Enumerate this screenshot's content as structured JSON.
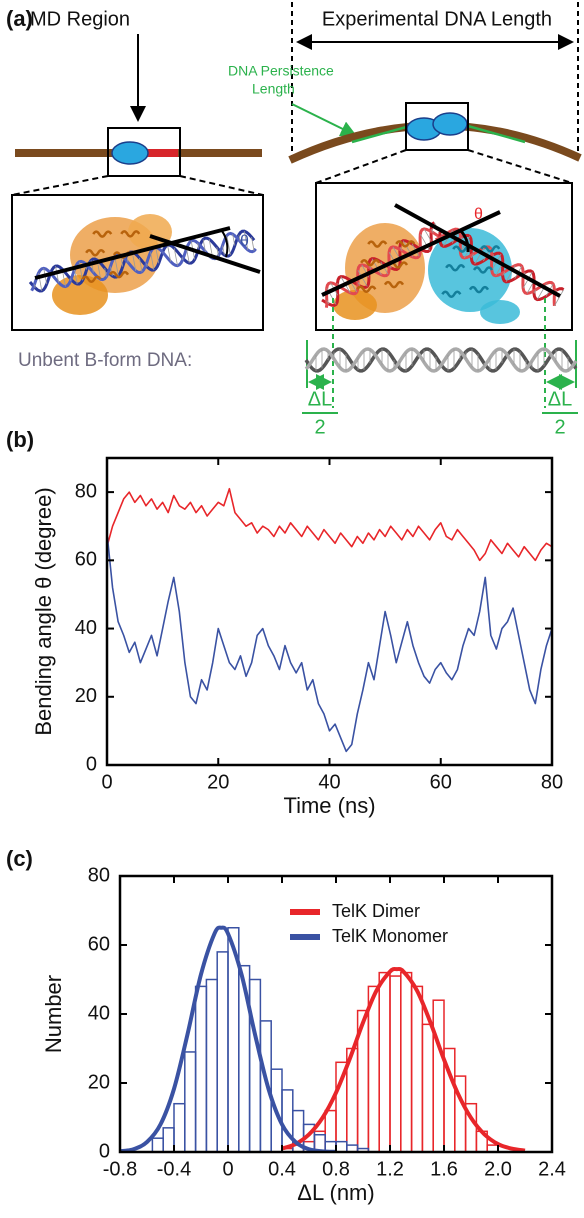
{
  "figure_a": {
    "label": "(a)",
    "md_region": "MD Region",
    "experimental_length": "Experimental DNA Length",
    "persistence_length": [
      "DNA Persistence",
      "Length"
    ],
    "theta_monomer": "θ",
    "theta_dimer": "θ",
    "unbent_dna": "Unbent B-form DNA:",
    "delta_l_left": {
      "numerator": "ΔL",
      "denominator": "2"
    },
    "delta_l_right": {
      "numerator": "ΔL",
      "denominator": "2"
    }
  },
  "chart_data": [
    {
      "type": "line",
      "panel_label": "(b)",
      "x_label": "Time (ns)",
      "y_label": "Bending angle θ (degree)",
      "xlim": [
        0,
        80
      ],
      "xticks": [
        0,
        20,
        40,
        60,
        80
      ],
      "ylim": [
        0,
        90
      ],
      "yticks": [
        0,
        20,
        40,
        60,
        80
      ],
      "x": [
        0,
        1,
        2,
        3,
        4,
        5,
        6,
        7,
        8,
        9,
        10,
        11,
        12,
        13,
        14,
        15,
        16,
        17,
        18,
        19,
        20,
        21,
        22,
        23,
        24,
        25,
        26,
        27,
        28,
        29,
        30,
        31,
        32,
        33,
        34,
        35,
        36,
        37,
        38,
        39,
        40,
        41,
        42,
        43,
        44,
        45,
        46,
        47,
        48,
        49,
        50,
        51,
        52,
        53,
        54,
        55,
        56,
        57,
        58,
        59,
        60,
        61,
        62,
        63,
        64,
        65,
        66,
        67,
        68,
        69,
        70,
        71,
        72,
        73,
        74,
        75,
        76,
        77,
        78,
        79,
        80
      ],
      "series": [
        {
          "color": "#e8262a",
          "values": [
            64,
            70,
            74,
            78,
            80,
            77,
            79,
            76,
            78,
            75,
            77,
            74,
            79,
            76,
            75,
            77,
            74,
            76,
            73,
            75,
            77,
            76,
            81,
            74,
            72,
            70,
            71,
            68,
            70,
            69,
            67,
            70,
            68,
            71,
            69,
            67,
            70,
            68,
            66,
            69,
            67,
            65,
            68,
            66,
            64,
            67,
            65,
            68,
            66,
            69,
            67,
            70,
            68,
            66,
            69,
            67,
            70,
            68,
            66,
            69,
            71,
            67,
            66,
            69,
            67,
            65,
            63,
            60,
            62,
            66,
            64,
            62,
            65,
            63,
            61,
            64,
            62,
            60,
            63,
            65,
            64
          ]
        },
        {
          "color": "#3a52a3",
          "values": [
            68,
            52,
            42,
            38,
            33,
            36,
            30,
            34,
            38,
            32,
            40,
            48,
            55,
            45,
            30,
            20,
            18,
            25,
            22,
            30,
            40,
            35,
            30,
            28,
            32,
            26,
            30,
            38,
            40,
            35,
            32,
            28,
            35,
            30,
            27,
            30,
            22,
            25,
            18,
            15,
            10,
            12,
            8,
            4,
            6,
            15,
            22,
            30,
            25,
            35,
            45,
            38,
            30,
            36,
            42,
            35,
            30,
            26,
            24,
            28,
            30,
            27,
            25,
            28,
            35,
            40,
            38,
            45,
            55,
            38,
            34,
            40,
            42,
            46,
            38,
            30,
            22,
            18,
            28,
            35,
            40
          ]
        }
      ]
    },
    {
      "type": "histogram",
      "panel_label": "(c)",
      "x_label": "ΔL (nm)",
      "y_label": "Number",
      "xlim": [
        -0.8,
        2.4
      ],
      "xticks": [
        -0.8,
        -0.4,
        0,
        0.4,
        0.8,
        1.2,
        1.6,
        {
          "value": 2,
          "label": "2.0"
        },
        2.4
      ],
      "ylim": [
        0,
        80
      ],
      "yticks": [
        0,
        20,
        40,
        60,
        80
      ],
      "legend": "upper right",
      "histograms": [
        {
          "name": "TelK Dimer",
          "color": "#e8262a",
          "bins": [
            0.4,
            0.48,
            0.56,
            0.64,
            0.72,
            0.8,
            0.88,
            0.96,
            1.04,
            1.12,
            1.2,
            1.28,
            1.36,
            1.44,
            1.52,
            1.6,
            1.68,
            1.76,
            1.84,
            1.92,
            2.0
          ],
          "counts": [
            1,
            2,
            3,
            6,
            12,
            26,
            30,
            41,
            48,
            52,
            51,
            52,
            48,
            37,
            44,
            30,
            22,
            14,
            6,
            2
          ]
        },
        {
          "name": "TelK Monomer",
          "color": "#3a52a3",
          "bins": [
            -0.56,
            -0.48,
            -0.4,
            -0.32,
            -0.24,
            -0.16,
            -0.08,
            0,
            0.08,
            0.16,
            0.24,
            0.32,
            0.4,
            0.48,
            0.56,
            0.64,
            0.72,
            0.8,
            0.88,
            0.96,
            1.04
          ],
          "counts": [
            4,
            7,
            14,
            29,
            48,
            50,
            58,
            65,
            54,
            50,
            38,
            24,
            18,
            12,
            8,
            5,
            3,
            3,
            2,
            1
          ]
        }
      ],
      "fits": [
        {
          "color": "#e8262a",
          "x": [
            0.4,
            0.5,
            0.6,
            0.7,
            0.8,
            0.9,
            1.0,
            1.1,
            1.2,
            1.25,
            1.3,
            1.4,
            1.5,
            1.6,
            1.7,
            1.8,
            1.9,
            2.0,
            2.1,
            2.2
          ],
          "values": [
            1.0,
            2.3,
            5.1,
            9.9,
            17.2,
            26.8,
            37.5,
            46.8,
            52.3,
            53,
            52.3,
            46.8,
            37.5,
            26.8,
            17.2,
            9.9,
            5.1,
            2.3,
            1.0,
            0.4
          ]
        },
        {
          "color": "#3a52a3",
          "x": [
            -0.8,
            -0.7,
            -0.6,
            -0.5,
            -0.4,
            -0.3,
            -0.2,
            -0.1,
            -0.05,
            0,
            0.1,
            0.2,
            0.3,
            0.4,
            0.5,
            0.6,
            0.7,
            0.8
          ],
          "values": [
            0.2,
            0.8,
            2.9,
            8.0,
            18.3,
            34.1,
            51.5,
            63.3,
            65,
            63.3,
            51.5,
            34.1,
            18.3,
            8.0,
            2.9,
            0.8,
            0.2,
            0.04
          ]
        }
      ]
    }
  ]
}
